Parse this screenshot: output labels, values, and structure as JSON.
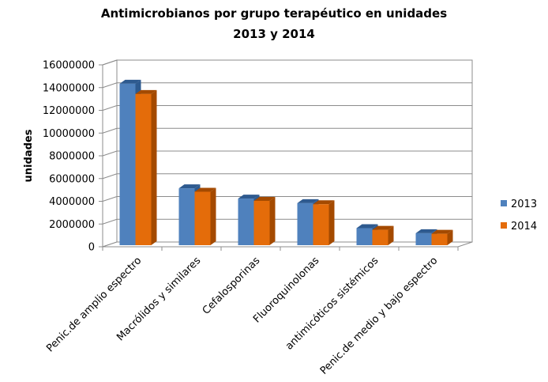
{
  "chart_data": {
    "type": "bar",
    "title_line1": "Antimicrobianos por grupo terapéutico en unidades",
    "title_line2": "2013 y 2014",
    "ylabel": "unidades",
    "xlabel": "",
    "ylim": [
      0,
      16000000
    ],
    "yticks": [
      0,
      2000000,
      4000000,
      6000000,
      8000000,
      10000000,
      12000000,
      14000000,
      16000000
    ],
    "categories": [
      "Penic.de amplio espectro",
      "Macrólidos y similares",
      "Cefalosporinas",
      "Fluoroquinolonas",
      "antimicóticos sistémicos",
      "Penic.de medio y bajo espectro"
    ],
    "series": [
      {
        "name": "2013",
        "values": [
          14200000,
          5000000,
          4100000,
          3700000,
          1500000,
          1050000
        ]
      },
      {
        "name": "2014",
        "values": [
          13300000,
          4700000,
          3900000,
          3600000,
          1350000,
          1000000
        ]
      }
    ],
    "grid": true,
    "legend_position": "right",
    "colors": {
      "series": [
        "#4F81BD",
        "#E46C0A"
      ],
      "series_side": [
        "#2E5A8F",
        "#A44A00"
      ],
      "series_top": [
        "#2E5A8F",
        "#A44A00"
      ],
      "grid": "#8C8C8C",
      "wall": "#ffffff",
      "floor": "#ffffff"
    }
  }
}
